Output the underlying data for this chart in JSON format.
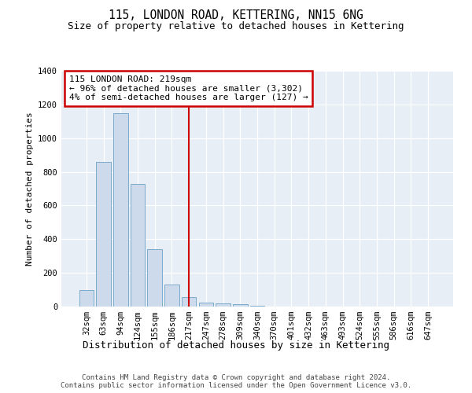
{
  "title": "115, LONDON ROAD, KETTERING, NN15 6NG",
  "subtitle": "Size of property relative to detached houses in Kettering",
  "xlabel": "Distribution of detached houses by size in Kettering",
  "ylabel": "Number of detached properties",
  "bar_color": "#ccdaeb",
  "bar_edge_color": "#7baacb",
  "background_color": "#e8eef6",
  "grid_color": "#ffffff",
  "categories": [
    "32sqm",
    "63sqm",
    "94sqm",
    "124sqm",
    "155sqm",
    "186sqm",
    "217sqm",
    "247sqm",
    "278sqm",
    "309sqm",
    "340sqm",
    "370sqm",
    "401sqm",
    "432sqm",
    "463sqm",
    "493sqm",
    "524sqm",
    "555sqm",
    "586sqm",
    "616sqm",
    "647sqm"
  ],
  "values": [
    100,
    860,
    1150,
    730,
    340,
    130,
    55,
    25,
    20,
    15,
    5,
    0,
    0,
    0,
    0,
    0,
    0,
    0,
    0,
    0,
    0
  ],
  "property_value_idx": 6,
  "vline_color": "#cc0000",
  "annotation_line1": "115 LONDON ROAD: 219sqm",
  "annotation_line2": "← 96% of detached houses are smaller (3,302)",
  "annotation_line3": "4% of semi-detached houses are larger (127) →",
  "annotation_box_color": "#cc0000",
  "ylim": [
    0,
    1400
  ],
  "yticks": [
    0,
    200,
    400,
    600,
    800,
    1000,
    1200,
    1400
  ],
  "footer_line1": "Contains HM Land Registry data © Crown copyright and database right 2024.",
  "footer_line2": "Contains public sector information licensed under the Open Government Licence v3.0.",
  "title_fontsize": 10.5,
  "subtitle_fontsize": 9,
  "ylabel_fontsize": 8,
  "xlabel_fontsize": 9,
  "tick_fontsize": 7.5,
  "footer_fontsize": 6.5,
  "annot_fontsize": 8
}
